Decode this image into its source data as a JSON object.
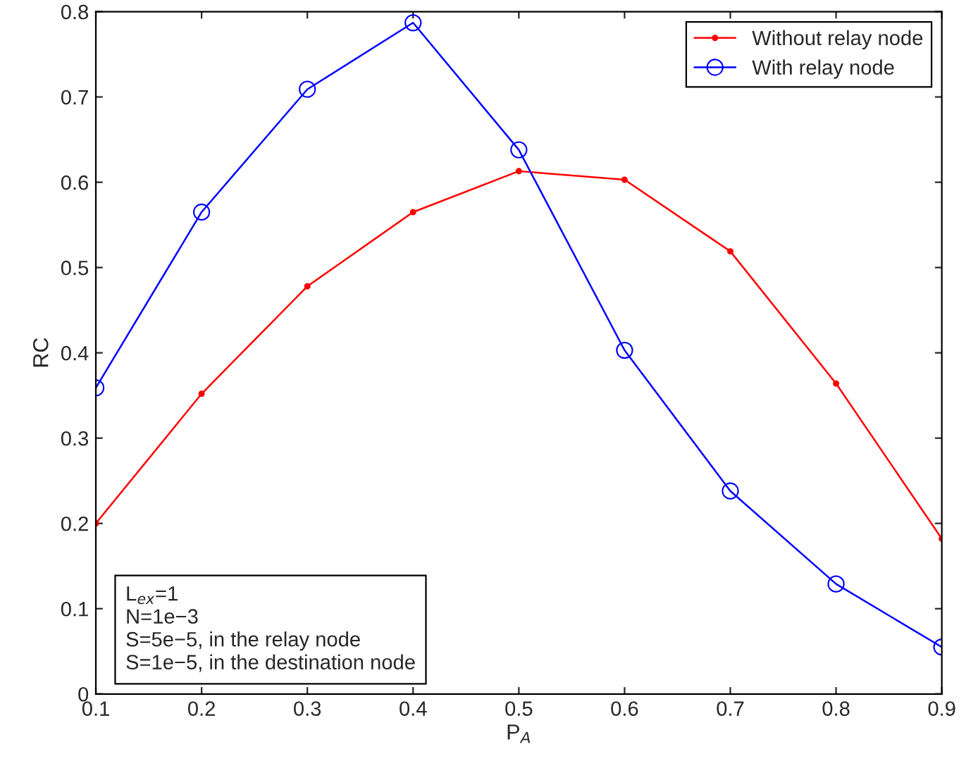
{
  "chart_data": {
    "type": "line",
    "xlabel": "P$_{A}$",
    "ylabel": "RC",
    "x": [
      0.1,
      0.2,
      0.3,
      0.4,
      0.5,
      0.6,
      0.7,
      0.8,
      0.9
    ],
    "series": [
      {
        "name": "Without relay node",
        "color": "#ff0000",
        "marker": "circle",
        "values": [
          0.2,
          0.352,
          0.478,
          0.565,
          0.613,
          0.603,
          0.519,
          0.364,
          0.182
        ]
      },
      {
        "name": "With relay node",
        "color": "#0000ff",
        "marker": "circle",
        "values": [
          0.359,
          0.565,
          0.709,
          0.787,
          0.638,
          0.403,
          0.238,
          0.129,
          0.055
        ]
      }
    ],
    "xlim": [
      0.1,
      0.9
    ],
    "ylim": [
      0,
      0.8
    ],
    "xticks": [
      0.1,
      0.2,
      0.3,
      0.4,
      0.5,
      0.6,
      0.7,
      0.8,
      0.9
    ],
    "yticks": [
      0,
      0.1,
      0.2,
      0.3,
      0.4,
      0.5,
      0.6,
      0.7,
      0.8
    ],
    "legend": "top right",
    "grid": false,
    "annotations": [
      "L$_{ex}$=1\nN=1e−3\nS=5e−5, in the relay node\nS=1e−5, in the destination node"
    ]
  }
}
